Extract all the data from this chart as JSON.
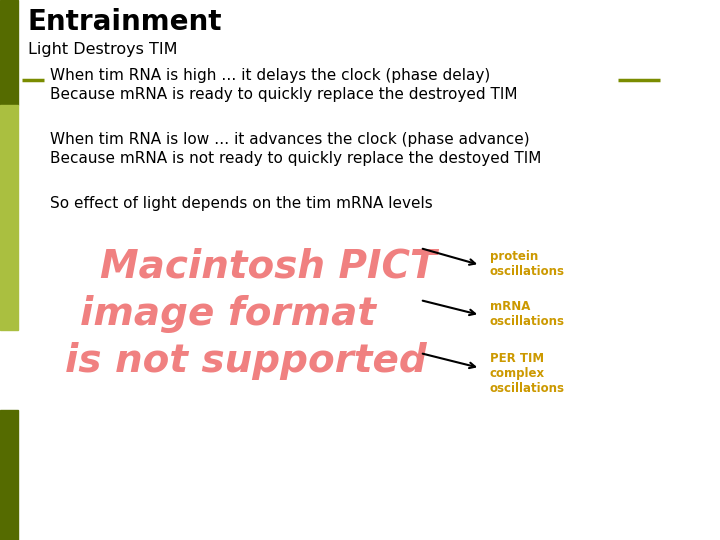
{
  "title": "Entrainment",
  "subtitle": "Light Destroys TIM",
  "bg_color": "#ffffff",
  "dash_color": "#7a8c00",
  "title_color": "#000000",
  "subtitle_color": "#000000",
  "text_color": "#000000",
  "orange_color": "#cc9900",
  "pict_color": "#f08080",
  "bar_dark": "#556b00",
  "bar_light": "#aabf40",
  "line1": "When tim RNA is high … it delays the clock (phase delay)",
  "line2": "Because mRNA is ready to quickly replace the destroyed TIM",
  "line3": "When tim RNA is low … it advances the clock (phase advance)",
  "line4": "Because mRNA is not ready to quickly replace the destoyed TIM",
  "line5": "So effect of light depends on the tim mRNA levels",
  "label1": "protein\noscillations",
  "label2": "mRNA\noscillations",
  "label3": "PER TIM\ncomplex\noscillations",
  "pict_text1": "Macintosh PICT",
  "pict_text2": "image format",
  "pict_text3": "is not supported"
}
